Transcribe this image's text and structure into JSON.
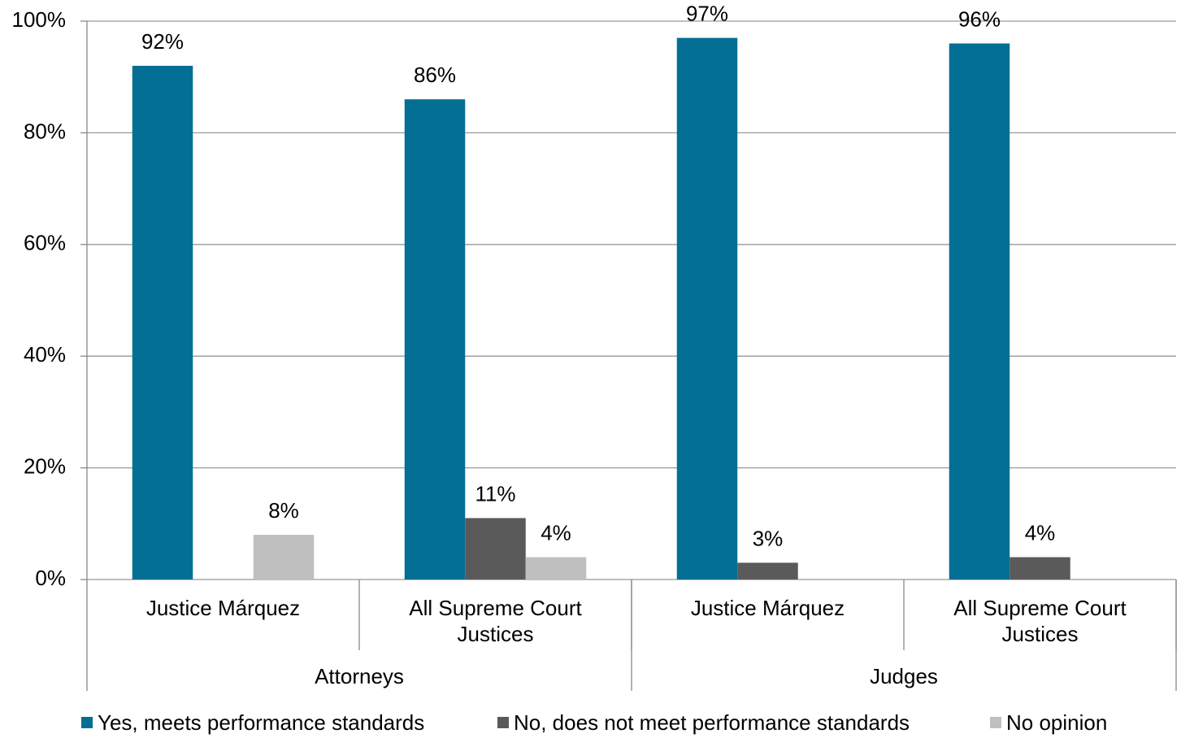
{
  "chart_data": {
    "type": "bar",
    "categories": [
      "Justice Márquez",
      "All Supreme Court Justices",
      "Justice Márquez",
      "All Supreme Court Justices"
    ],
    "group_labels": [
      "Attorneys",
      "Judges"
    ],
    "series": [
      {
        "name": "Yes, meets performance standards",
        "color": "#036f94",
        "values": [
          92,
          86,
          97,
          96
        ],
        "value_labels": [
          "92%",
          "86%",
          "97%",
          "96%"
        ]
      },
      {
        "name": "No, does not meet performance standards",
        "color": "#5a5a5a",
        "values": [
          null,
          11,
          3,
          4
        ],
        "value_labels": [
          null,
          "11%",
          "3%",
          "4%"
        ]
      },
      {
        "name": "No opinion",
        "color": "#bfbfbf",
        "values": [
          8,
          4,
          null,
          null
        ],
        "value_labels": [
          "8%",
          "4%",
          null,
          null
        ]
      }
    ],
    "ylim": [
      0,
      100
    ],
    "yticks": [
      {
        "value": 0,
        "label": "0%"
      },
      {
        "value": 20,
        "label": "20%"
      },
      {
        "value": 40,
        "label": "40%"
      },
      {
        "value": 60,
        "label": "60%"
      },
      {
        "value": 80,
        "label": "80%"
      },
      {
        "value": 100,
        "label": "100%"
      }
    ],
    "grid": true
  }
}
